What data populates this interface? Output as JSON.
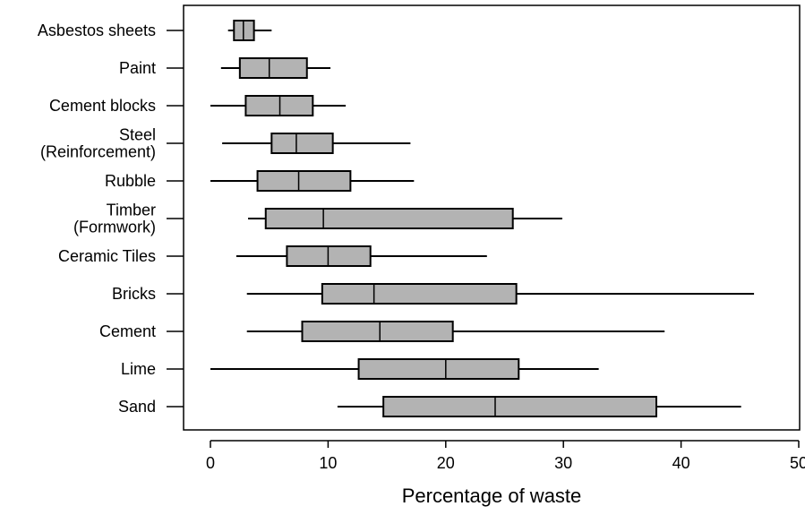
{
  "chart_data": {
    "type": "boxplot",
    "orientation": "horizontal",
    "title": "",
    "xlabel": "Percentage of waste",
    "ylabel": "",
    "xlim": [
      -2.3,
      50.3
    ],
    "xticks": [
      0,
      10,
      20,
      30,
      40,
      50
    ],
    "grid": false,
    "legend": "none",
    "box_fill": "#b3b3b3",
    "line_color": "#000000",
    "categories": [
      {
        "label": [
          "Asbestos  sheets"
        ],
        "whisker_low": 1.5,
        "q1": 2.0,
        "median": 2.8,
        "q3": 3.7,
        "whisker_high": 5.2
      },
      {
        "label": [
          "Paint"
        ],
        "whisker_low": 0.9,
        "q1": 2.5,
        "median": 5.0,
        "q3": 8.2,
        "whisker_high": 10.2
      },
      {
        "label": [
          "Cement blocks"
        ],
        "whisker_low": 0.0,
        "q1": 3.0,
        "median": 5.9,
        "q3": 8.7,
        "whisker_high": 11.5
      },
      {
        "label": [
          "Steel",
          "(Reinforcement)"
        ],
        "whisker_low": 1.0,
        "q1": 5.2,
        "median": 7.3,
        "q3": 10.4,
        "whisker_high": 17.0
      },
      {
        "label": [
          "Rubble"
        ],
        "whisker_low": 0.0,
        "q1": 4.0,
        "median": 7.5,
        "q3": 11.9,
        "whisker_high": 17.3
      },
      {
        "label": [
          "Timber",
          "(Formwork)"
        ],
        "whisker_low": 3.2,
        "q1": 4.7,
        "median": 9.6,
        "q3": 25.7,
        "whisker_high": 29.9
      },
      {
        "label": [
          "Ceramic Tiles"
        ],
        "whisker_low": 2.2,
        "q1": 6.5,
        "median": 10.0,
        "q3": 13.6,
        "whisker_high": 23.5
      },
      {
        "label": [
          "Bricks"
        ],
        "whisker_low": 3.1,
        "q1": 9.5,
        "median": 13.9,
        "q3": 26.0,
        "whisker_high": 46.2
      },
      {
        "label": [
          "Cement"
        ],
        "whisker_low": 3.1,
        "q1": 7.8,
        "median": 14.4,
        "q3": 20.6,
        "whisker_high": 38.6
      },
      {
        "label": [
          "Lime"
        ],
        "whisker_low": 0.0,
        "q1": 12.6,
        "median": 20.0,
        "q3": 26.2,
        "whisker_high": 33.0
      },
      {
        "label": [
          "Sand"
        ],
        "whisker_low": 10.8,
        "q1": 14.7,
        "median": 24.2,
        "q3": 37.9,
        "whisker_high": 45.1
      }
    ]
  }
}
